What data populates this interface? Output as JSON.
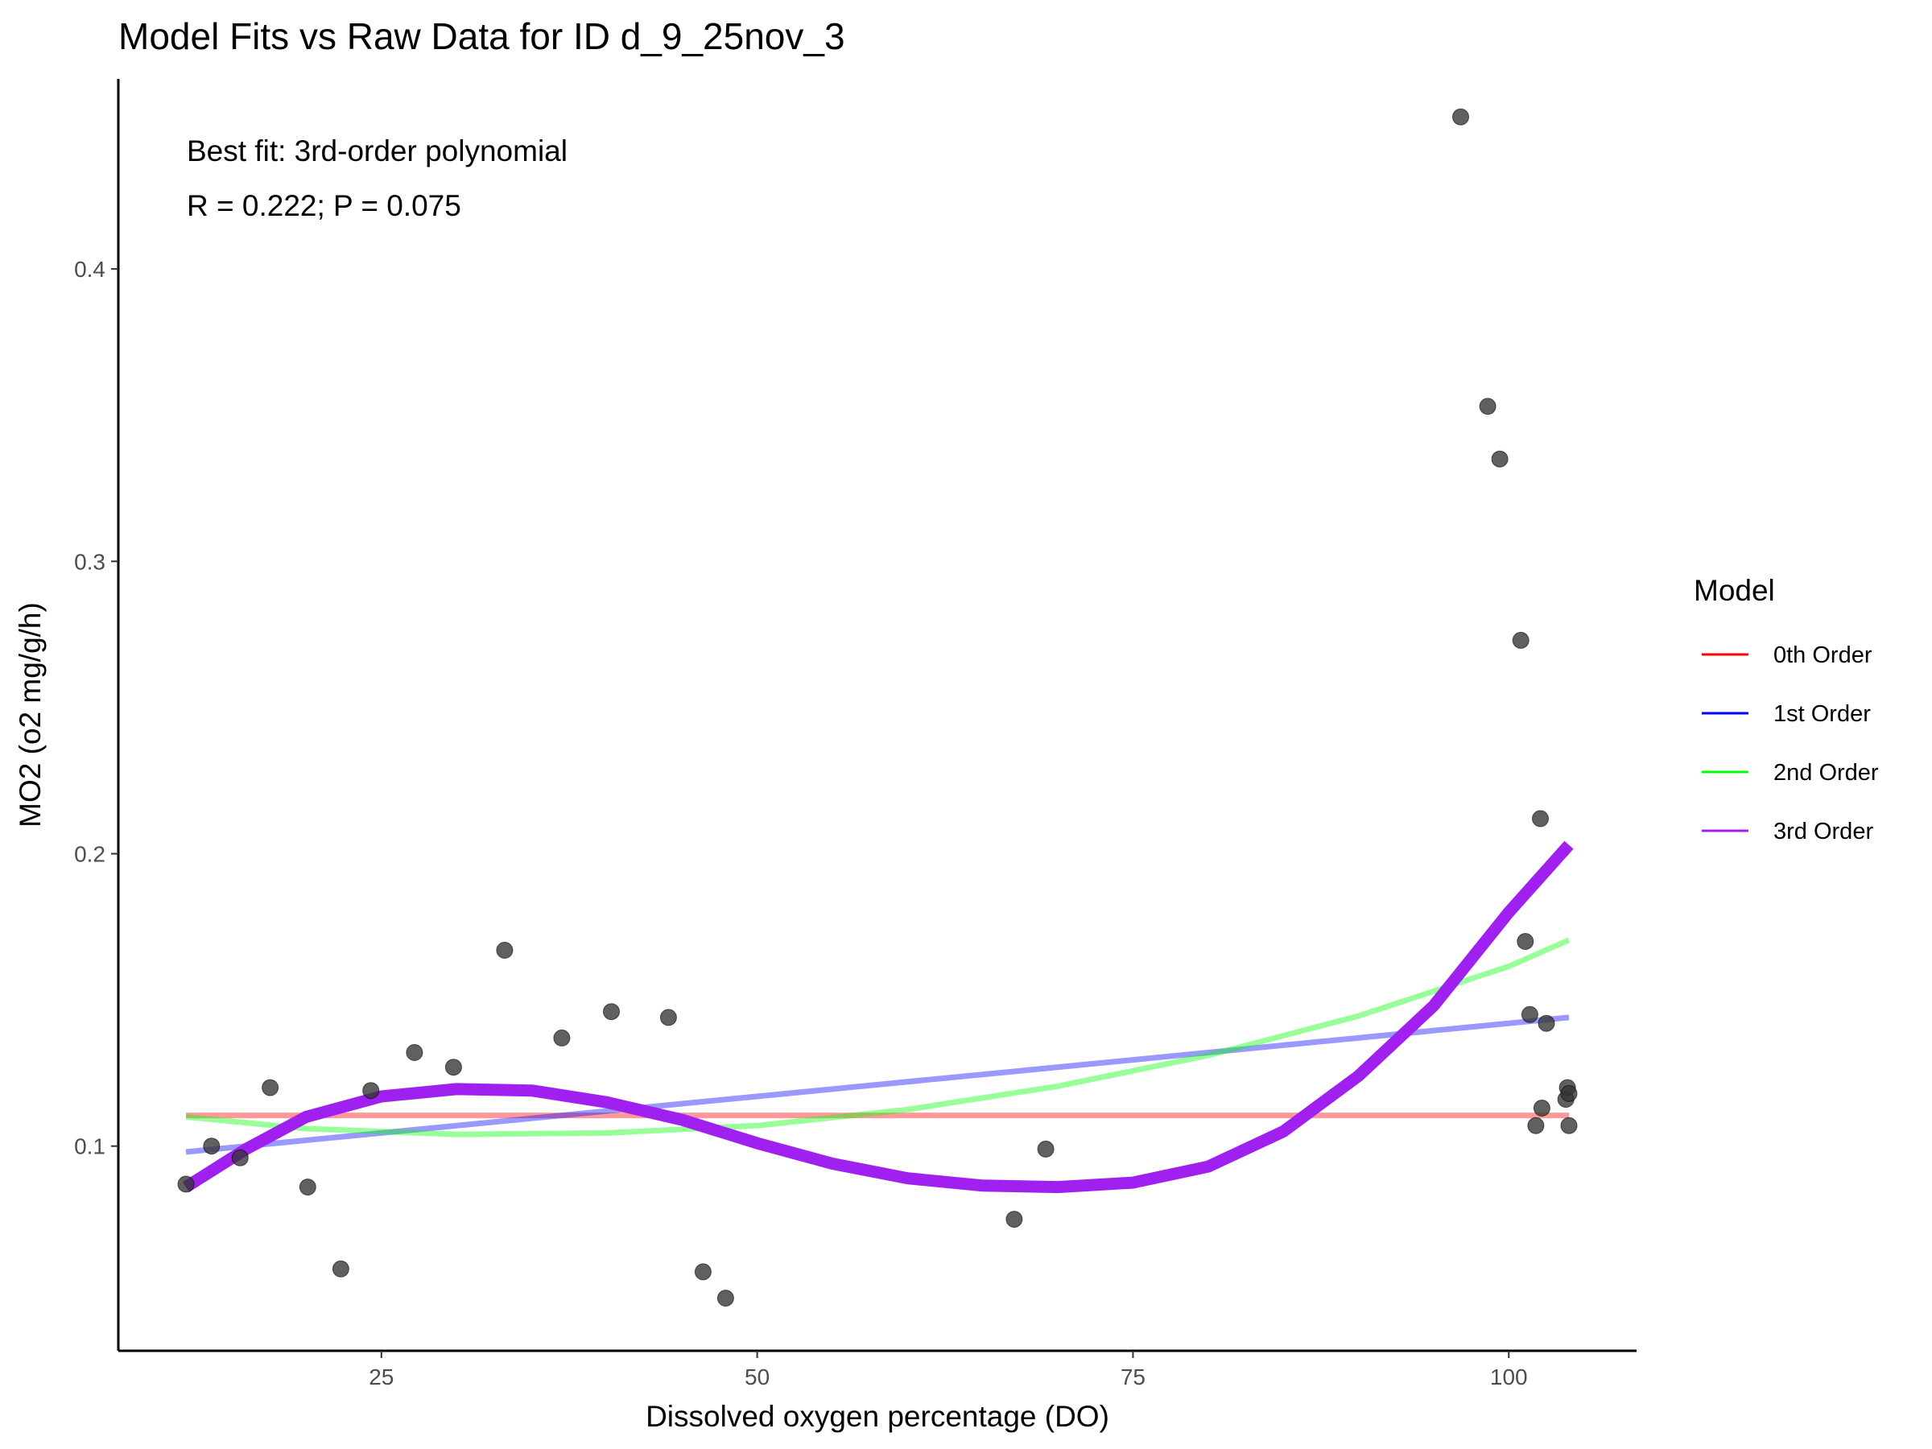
{
  "chart_data": {
    "type": "scatter",
    "title": "Model Fits vs Raw Data for ID d_9_25nov_3",
    "xlabel": "Dissolved oxygen percentage (DO)",
    "ylabel": "MO2 (o2 mg/g/h)",
    "xlim": [
      7.5,
      108.5
    ],
    "ylim": [
      0.03,
      0.465
    ],
    "x_ticks": [
      25,
      50,
      75,
      100
    ],
    "y_ticks": [
      0.1,
      0.2,
      0.3,
      0.4
    ],
    "x_tick_labels": [
      "25",
      "50",
      "75",
      "100"
    ],
    "y_tick_labels": [
      "0.1",
      "0.2",
      "0.3",
      "0.4"
    ],
    "annotations": [
      "Best fit: 3rd-order polynomial",
      "R = 0.222; P = 0.075"
    ],
    "legend": {
      "title": "Model",
      "position": "right",
      "entries": [
        {
          "label": "0th Order",
          "color": "#ff0000"
        },
        {
          "label": "1st Order",
          "color": "#0000ff"
        },
        {
          "label": "2nd Order",
          "color": "#00ff00"
        },
        {
          "label": "3rd Order",
          "color": "#a020f0"
        }
      ]
    },
    "points": {
      "color": "#333333",
      "x": [
        12.0,
        13.7,
        15.6,
        17.6,
        20.1,
        22.3,
        24.3,
        27.2,
        29.8,
        33.2,
        37.0,
        40.3,
        44.1,
        46.4,
        47.9,
        67.1,
        69.2,
        96.8,
        98.6,
        99.4,
        100.8,
        101.1,
        101.4,
        101.8,
        102.1,
        102.2,
        102.5,
        103.8,
        103.9,
        104.0,
        104.0
      ],
      "y": [
        0.087,
        0.1,
        0.096,
        0.12,
        0.086,
        0.058,
        0.119,
        0.132,
        0.127,
        0.167,
        0.137,
        0.146,
        0.144,
        0.057,
        0.048,
        0.075,
        0.099,
        0.452,
        0.353,
        0.335,
        0.273,
        0.17,
        0.145,
        0.107,
        0.212,
        0.113,
        0.142,
        0.116,
        0.12,
        0.118,
        0.107
      ]
    },
    "series": [
      {
        "name": "0th Order",
        "color": "#ff0000",
        "x": [
          12,
          104
        ],
        "y": [
          0.1105,
          0.1105
        ]
      },
      {
        "name": "1st Order",
        "color": "#0000ff",
        "x": [
          12,
          104
        ],
        "y": [
          0.098,
          0.144
        ]
      },
      {
        "name": "2nd Order",
        "color": "#00ff00",
        "x": [
          12,
          20,
          30,
          40,
          50,
          60,
          70,
          80,
          90,
          100,
          104
        ],
        "y": [
          0.11,
          0.106,
          0.104,
          0.1045,
          0.107,
          0.1125,
          0.1205,
          0.131,
          0.1445,
          0.1615,
          0.1705
        ]
      },
      {
        "name": "3rd Order",
        "color": "#a020f0",
        "x": [
          12,
          16,
          20,
          25,
          30,
          35,
          40,
          45,
          50,
          55,
          60,
          65,
          70,
          75,
          80,
          85,
          90,
          95,
          100,
          104
        ],
        "y": [
          0.086,
          0.099,
          0.11,
          0.117,
          0.1195,
          0.119,
          0.115,
          0.109,
          0.101,
          0.094,
          0.089,
          0.0865,
          0.086,
          0.0875,
          0.093,
          0.105,
          0.124,
          0.148,
          0.18,
          0.203
        ]
      }
    ]
  }
}
